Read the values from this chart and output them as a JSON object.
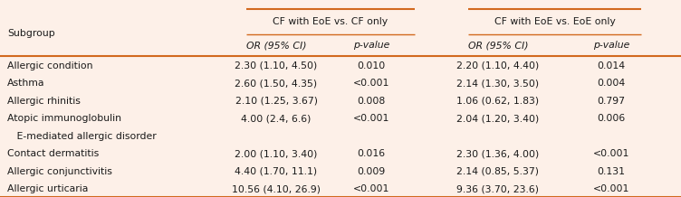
{
  "bg_color": "#fdf0e8",
  "orange_color": "#d2691e",
  "text_color": "#1a1a1a",
  "col1_header": "Subgroup",
  "group1_header": "CF with EoE vs. CF only",
  "group2_header": "CF with EoE vs. EoE only",
  "sub_headers": [
    "OR (95% CI)",
    "p-value",
    "OR (95% CI)",
    "p-value"
  ],
  "rows": [
    {
      "label": "Allergic condition",
      "c1": "2.30 (1.10, 4.50)",
      "c2": "0.010",
      "c3": "2.20 (1.10, 4.40)",
      "c4": "0.014"
    },
    {
      "label": "Asthma",
      "c1": "2.60 (1.50, 4.35)",
      "c2": "<0.001",
      "c3": "2.14 (1.30, 3.50)",
      "c4": "0.004"
    },
    {
      "label": "Allergic rhinitis",
      "c1": "2.10 (1.25, 3.67)",
      "c2": "0.008",
      "c3": "1.06 (0.62, 1.83)",
      "c4": "0.797"
    },
    {
      "label": "Atopic immunoglobulin",
      "c1": "4.00 (2.4, 6.6)",
      "c2": "<0.001",
      "c3": "2.04 (1.20, 3.40)",
      "c4": "0.006"
    },
    {
      "label": "   E-mediated allergic disorder",
      "c1": "",
      "c2": "",
      "c3": "",
      "c4": ""
    },
    {
      "label": "Contact dermatitis",
      "c1": "2.00 (1.10, 3.40)",
      "c2": "0.016",
      "c3": "2.30 (1.36, 4.00)",
      "c4": "<0.001"
    },
    {
      "label": "Allergic conjunctivitis",
      "c1": "4.40 (1.70, 11.1)",
      "c2": "0.009",
      "c3": "2.14 (0.85, 5.37)",
      "c4": "0.131"
    },
    {
      "label": "Allergic urticaria",
      "c1": "10.56 (4.10, 26.9)",
      "c2": "<0.001",
      "c3": "9.36 (3.70, 23.6)",
      "c4": "<0.001"
    }
  ],
  "font_size": 7.8,
  "figw": 7.52,
  "figh": 2.18,
  "dpi": 100
}
